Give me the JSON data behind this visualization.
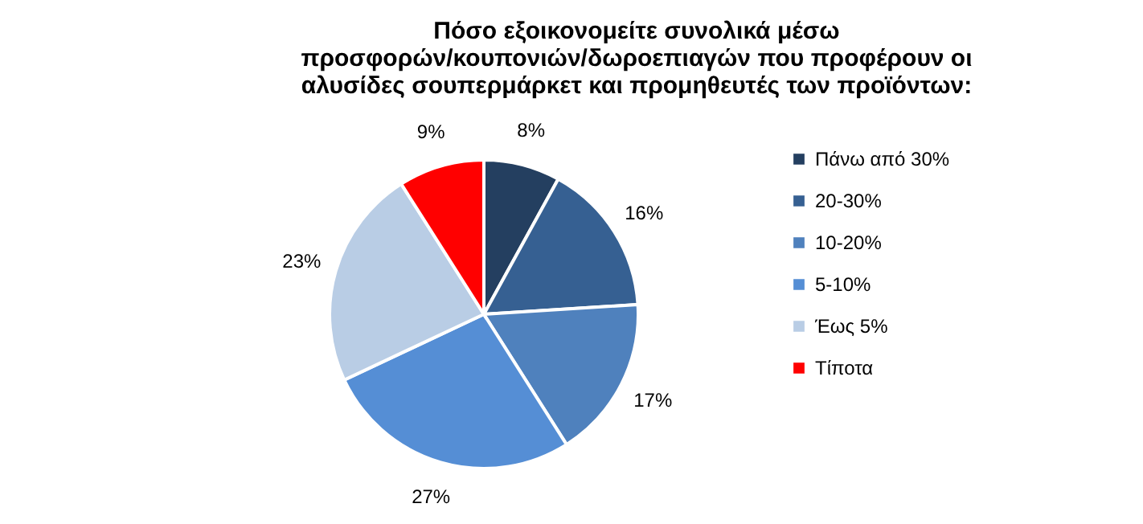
{
  "chart_data": {
    "type": "pie",
    "title": "Πόσο εξοικονομείτε συνολικά μέσω\nπροσφορών/κουπονιών/δωροεπιαγών που προφέρουν οι\nαλυσίδες σουπερμάρκετ και προμηθευτές των προϊόντων:",
    "categories": [
      "Πάνω από 30%",
      "20-30%",
      "10-20%",
      "5-10%",
      "Έως 5%",
      "Τίποτα"
    ],
    "values": [
      8,
      16,
      17,
      27,
      23,
      9
    ],
    "value_labels": [
      "8%",
      "16%",
      "17%",
      "27%",
      "23%",
      "9%"
    ],
    "colors": [
      "#243f60",
      "#366092",
      "#4f81bd",
      "#558ed5",
      "#b9cde5",
      "#ff0000"
    ],
    "legend": "right"
  }
}
